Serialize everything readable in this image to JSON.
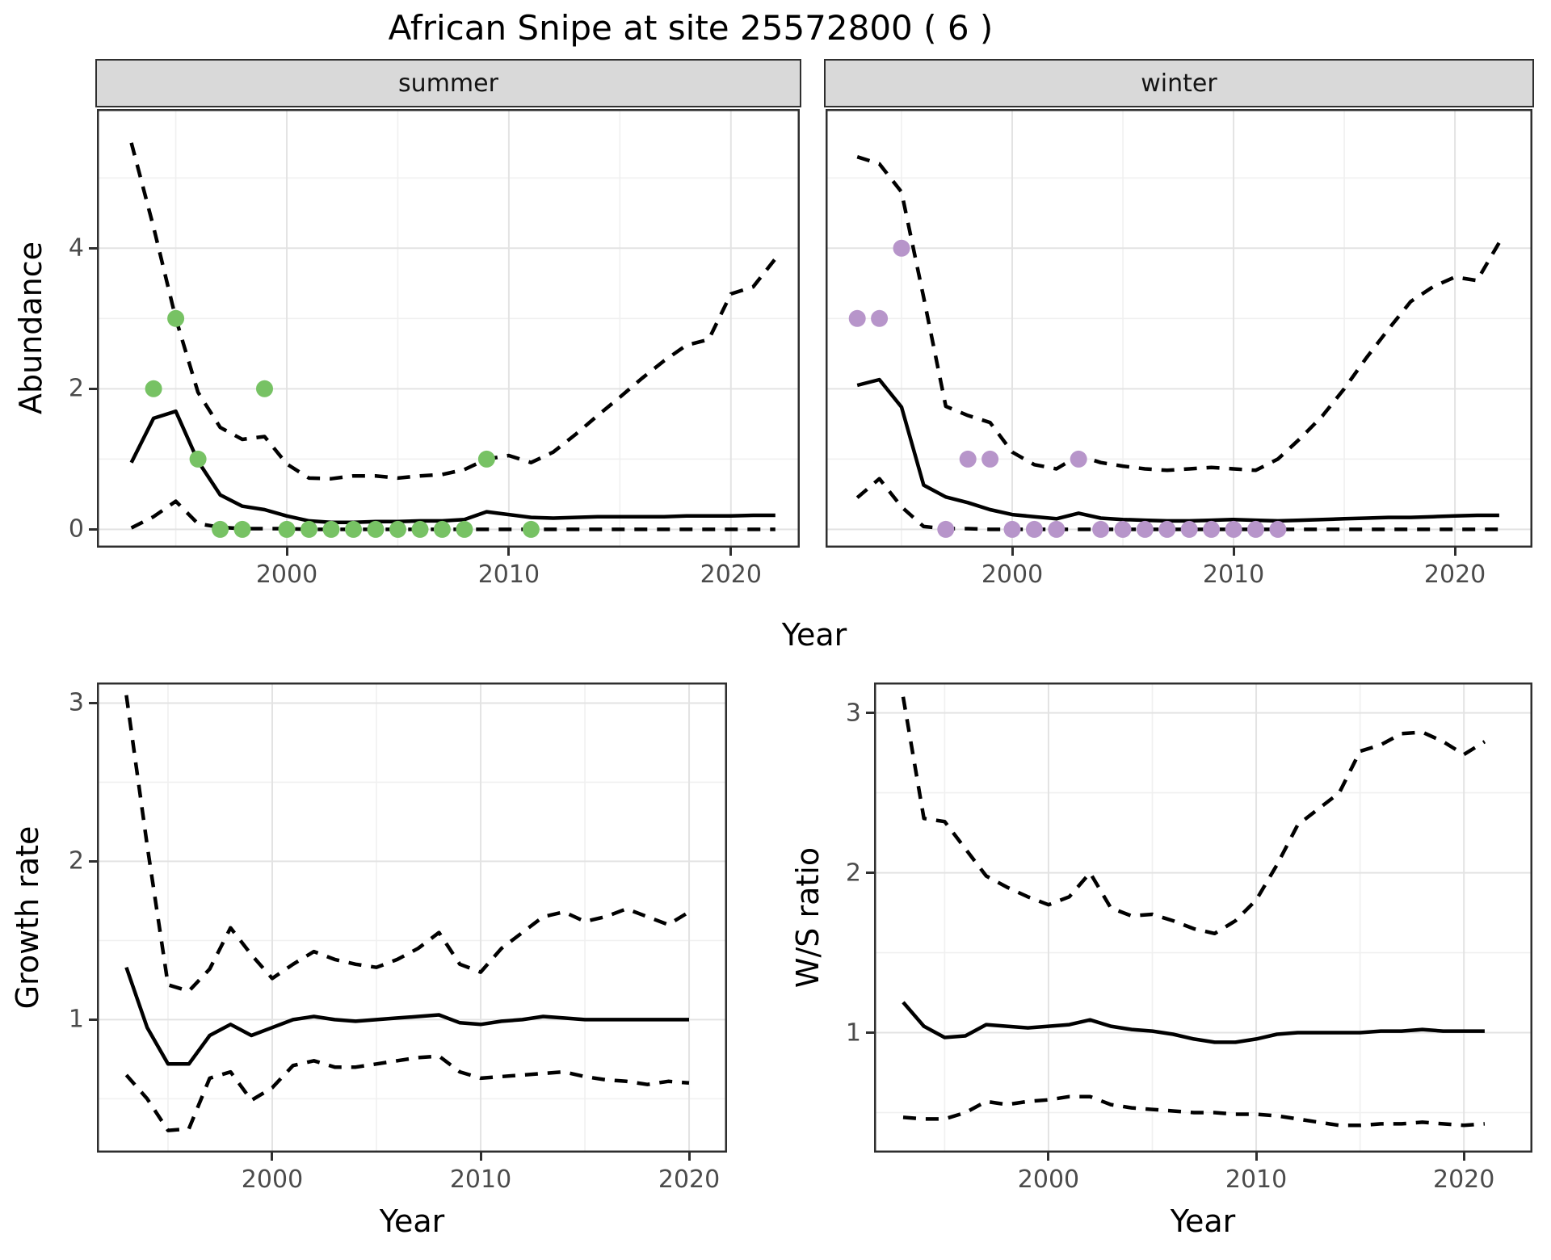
{
  "title": "African Snipe at site 25572800 ( 6 )",
  "chart_data": [
    {
      "id": "abundance-summer",
      "type": "line",
      "facet_label": "summer",
      "x_label": "Year",
      "y_label": "Abundance",
      "xlim": [
        1991.45,
        2023.1
      ],
      "ylim": [
        -0.26,
        5.98
      ],
      "grid": {
        "x_major": [
          2000,
          2010,
          2020
        ],
        "x_minor": [
          1995,
          2005,
          2015
        ],
        "y_major": [
          0,
          2,
          4
        ],
        "y_minor": [
          1,
          3,
          5
        ]
      },
      "x_ticks": [
        {
          "value": 2000,
          "label": "2000"
        },
        {
          "value": 2010,
          "label": "2010"
        },
        {
          "value": 2020,
          "label": "2020"
        }
      ],
      "y_ticks": [
        {
          "value": 0,
          "label": "0"
        },
        {
          "value": 2,
          "label": "2"
        },
        {
          "value": 4,
          "label": "4"
        }
      ],
      "series": [
        {
          "name": "upper-ci",
          "style": "dashed",
          "x": [
            1993,
            1994,
            1995,
            1996,
            1997,
            1998,
            1999,
            2000,
            2001,
            2002,
            2003,
            2004,
            2005,
            2006,
            2007,
            2008,
            2009,
            2010,
            2011,
            2012,
            2013,
            2014,
            2015,
            2016,
            2017,
            2018,
            2019,
            2020,
            2021,
            2022
          ],
          "y": [
            5.5,
            4.3,
            3.0,
            1.95,
            1.45,
            1.28,
            1.32,
            0.93,
            0.73,
            0.72,
            0.76,
            0.76,
            0.73,
            0.76,
            0.78,
            0.85,
            1.0,
            1.05,
            0.95,
            1.1,
            1.35,
            1.62,
            1.88,
            2.15,
            2.4,
            2.62,
            2.7,
            3.35,
            3.45,
            3.85
          ]
        },
        {
          "name": "median",
          "style": "solid",
          "x": [
            1993,
            1994,
            1995,
            1996,
            1997,
            1998,
            1999,
            2000,
            2001,
            2002,
            2003,
            2004,
            2005,
            2006,
            2007,
            2008,
            2009,
            2010,
            2011,
            2012,
            2013,
            2014,
            2015,
            2016,
            2017,
            2018,
            2019,
            2020,
            2021,
            2022
          ],
          "y": [
            0.95,
            1.58,
            1.68,
            0.97,
            0.49,
            0.33,
            0.28,
            0.19,
            0.12,
            0.1,
            0.1,
            0.11,
            0.11,
            0.12,
            0.12,
            0.14,
            0.25,
            0.21,
            0.17,
            0.16,
            0.17,
            0.18,
            0.18,
            0.18,
            0.18,
            0.19,
            0.19,
            0.19,
            0.2,
            0.2
          ]
        },
        {
          "name": "lower-ci",
          "style": "dashed",
          "x": [
            1993,
            1994,
            1995,
            1996,
            1997,
            1998,
            1999,
            2000,
            2001,
            2002,
            2003,
            2004,
            2005,
            2006,
            2007,
            2008,
            2009,
            2010,
            2011,
            2012,
            2013,
            2014,
            2015,
            2016,
            2017,
            2018,
            2019,
            2020,
            2021,
            2022
          ],
          "y": [
            0.02,
            0.18,
            0.4,
            0.08,
            0.03,
            0.01,
            0.01,
            0.01,
            0.0,
            0.0,
            0.0,
            0.0,
            0.0,
            0.0,
            0.0,
            0.0,
            0.0,
            0.0,
            0.0,
            0.0,
            0.0,
            0.0,
            0.0,
            0.0,
            0.0,
            0.0,
            0.0,
            0.0,
            0.0,
            0.0
          ]
        }
      ],
      "points": {
        "name": "observed-counts",
        "color": "#77c264",
        "x": [
          1994,
          1995,
          1996,
          1997,
          1998,
          1999,
          2000,
          2001,
          2002,
          2003,
          2004,
          2005,
          2006,
          2007,
          2008,
          2009,
          2011
        ],
        "y": [
          2,
          3,
          1,
          0,
          0,
          2,
          0,
          0,
          0,
          0,
          0,
          0,
          0,
          0,
          0,
          1,
          0
        ]
      }
    },
    {
      "id": "abundance-winter",
      "type": "line",
      "facet_label": "winter",
      "x_label": "Year",
      "y_label": "Abundance",
      "xlim": [
        1991.57,
        2023.5
      ],
      "ylim": [
        -0.26,
        5.98
      ],
      "grid": {
        "x_major": [
          2000,
          2010,
          2020
        ],
        "x_minor": [
          1995,
          2005,
          2015
        ],
        "y_major": [
          0,
          2,
          4
        ],
        "y_minor": [
          1,
          3,
          5
        ]
      },
      "x_ticks": [
        {
          "value": 2000,
          "label": "2000"
        },
        {
          "value": 2010,
          "label": "2010"
        },
        {
          "value": 2020,
          "label": "2020"
        }
      ],
      "y_ticks": [],
      "series": [
        {
          "name": "upper-ci",
          "style": "dashed",
          "x": [
            1993,
            1994,
            1995,
            1996,
            1997,
            1998,
            1999,
            2000,
            2001,
            2002,
            2003,
            2004,
            2005,
            2006,
            2007,
            2008,
            2009,
            2010,
            2011,
            2012,
            2013,
            2014,
            2015,
            2016,
            2017,
            2018,
            2019,
            2020,
            2021,
            2022
          ],
          "y": [
            5.3,
            5.2,
            4.8,
            3.3,
            1.75,
            1.62,
            1.52,
            1.1,
            0.92,
            0.86,
            1.05,
            0.95,
            0.9,
            0.86,
            0.84,
            0.86,
            0.88,
            0.86,
            0.84,
            1.0,
            1.29,
            1.61,
            2.0,
            2.44,
            2.85,
            3.24,
            3.45,
            3.59,
            3.54,
            4.08
          ]
        },
        {
          "name": "median",
          "style": "solid",
          "x": [
            1993,
            1994,
            1995,
            1996,
            1997,
            1998,
            1999,
            2000,
            2001,
            2002,
            2003,
            2004,
            2005,
            2006,
            2007,
            2008,
            2009,
            2010,
            2011,
            2012,
            2013,
            2014,
            2015,
            2016,
            2017,
            2018,
            2019,
            2020,
            2021,
            2022
          ],
          "y": [
            2.05,
            2.13,
            1.74,
            0.63,
            0.46,
            0.38,
            0.28,
            0.21,
            0.18,
            0.15,
            0.23,
            0.16,
            0.14,
            0.13,
            0.12,
            0.12,
            0.13,
            0.14,
            0.13,
            0.12,
            0.13,
            0.14,
            0.15,
            0.16,
            0.17,
            0.17,
            0.18,
            0.19,
            0.2,
            0.2
          ]
        },
        {
          "name": "lower-ci",
          "style": "dashed",
          "x": [
            1993,
            1994,
            1995,
            1996,
            1997,
            1998,
            1999,
            2000,
            2001,
            2002,
            2003,
            2004,
            2005,
            2006,
            2007,
            2008,
            2009,
            2010,
            2011,
            2012,
            2013,
            2014,
            2015,
            2016,
            2017,
            2018,
            2019,
            2020,
            2021,
            2022
          ],
          "y": [
            0.45,
            0.72,
            0.32,
            0.04,
            0.01,
            0.01,
            0.0,
            0.0,
            0.0,
            0.0,
            0.0,
            0.0,
            0.0,
            0.0,
            0.0,
            0.0,
            0.0,
            0.0,
            0.0,
            0.0,
            0.0,
            0.0,
            0.0,
            0.0,
            0.0,
            0.0,
            0.0,
            0.0,
            0.0,
            0.0
          ]
        }
      ],
      "points": {
        "name": "observed-counts",
        "color": "#b795ca",
        "x": [
          1993,
          1994,
          1995,
          1997,
          1998,
          1999,
          2000,
          2001,
          2002,
          2003,
          2004,
          2005,
          2006,
          2007,
          2008,
          2009,
          2010,
          2011,
          2012
        ],
        "y": [
          3,
          3,
          4,
          0,
          1,
          1,
          0,
          0,
          0,
          1,
          0,
          0,
          0,
          0,
          0,
          0,
          0,
          0,
          0
        ]
      }
    },
    {
      "id": "growth-rate",
      "type": "line",
      "facet_label": "",
      "x_label": "Year",
      "y_label": "Growth rate",
      "xlim": [
        1991.59,
        2021.82
      ],
      "ylim": [
        0.16,
        3.13
      ],
      "grid": {
        "x_major": [
          2000,
          2010,
          2020
        ],
        "x_minor": [
          1995,
          2005,
          2015
        ],
        "y_major": [
          1,
          2,
          3
        ],
        "y_minor": [
          0.5,
          1.5,
          2.5
        ]
      },
      "x_ticks": [
        {
          "value": 2000,
          "label": "2000"
        },
        {
          "value": 2010,
          "label": "2010"
        },
        {
          "value": 2020,
          "label": "2020"
        }
      ],
      "y_ticks": [
        {
          "value": 1,
          "label": "1"
        },
        {
          "value": 2,
          "label": "2"
        },
        {
          "value": 3,
          "label": "3"
        }
      ],
      "series": [
        {
          "name": "upper-ci",
          "style": "dashed",
          "x": [
            1993,
            1994,
            1995,
            1996,
            1997,
            1998,
            1999,
            2000,
            2001,
            2002,
            2003,
            2004,
            2005,
            2006,
            2007,
            2008,
            2009,
            2010,
            2011,
            2012,
            2013,
            2014,
            2015,
            2016,
            2017,
            2018,
            2019,
            2020
          ],
          "y": [
            3.05,
            2.1,
            1.22,
            1.18,
            1.32,
            1.58,
            1.41,
            1.26,
            1.35,
            1.43,
            1.38,
            1.35,
            1.33,
            1.38,
            1.45,
            1.55,
            1.35,
            1.3,
            1.45,
            1.55,
            1.65,
            1.68,
            1.62,
            1.65,
            1.7,
            1.65,
            1.6,
            1.68
          ]
        },
        {
          "name": "median",
          "style": "solid",
          "x": [
            1993,
            1994,
            1995,
            1996,
            1997,
            1998,
            1999,
            2000,
            2001,
            2002,
            2003,
            2004,
            2005,
            2006,
            2007,
            2008,
            2009,
            2010,
            2011,
            2012,
            2013,
            2014,
            2015,
            2016,
            2017,
            2018,
            2019,
            2020
          ],
          "y": [
            1.33,
            0.95,
            0.72,
            0.72,
            0.9,
            0.97,
            0.9,
            0.95,
            1.0,
            1.02,
            1.0,
            0.99,
            1.0,
            1.01,
            1.02,
            1.03,
            0.98,
            0.97,
            0.99,
            1.0,
            1.02,
            1.01,
            1.0,
            1.0,
            1.0,
            1.0,
            1.0,
            1.0
          ]
        },
        {
          "name": "lower-ci",
          "style": "dashed",
          "x": [
            1993,
            1994,
            1995,
            1996,
            1997,
            1998,
            1999,
            2000,
            2001,
            2002,
            2003,
            2004,
            2005,
            2006,
            2007,
            2008,
            2009,
            2010,
            2011,
            2012,
            2013,
            2014,
            2015,
            2016,
            2017,
            2018,
            2019,
            2020
          ],
          "y": [
            0.65,
            0.5,
            0.3,
            0.31,
            0.63,
            0.67,
            0.49,
            0.57,
            0.71,
            0.74,
            0.7,
            0.7,
            0.72,
            0.74,
            0.76,
            0.77,
            0.67,
            0.63,
            0.64,
            0.65,
            0.66,
            0.67,
            0.64,
            0.62,
            0.61,
            0.59,
            0.61,
            0.6
          ]
        }
      ],
      "points": null
    },
    {
      "id": "ws-ratio",
      "type": "line",
      "facet_label": "",
      "x_label": "Year",
      "y_label": "W/S ratio",
      "xlim": [
        1991.6,
        2023.3
      ],
      "ylim": [
        0.25,
        3.19
      ],
      "grid": {
        "x_major": [
          2000,
          2010,
          2020
        ],
        "x_minor": [
          1995,
          2005,
          2015
        ],
        "y_major": [
          1,
          2,
          3
        ],
        "y_minor": [
          0.5,
          1.5,
          2.5
        ]
      },
      "x_ticks": [
        {
          "value": 2000,
          "label": "2000"
        },
        {
          "value": 2010,
          "label": "2010"
        },
        {
          "value": 2020,
          "label": "2020"
        }
      ],
      "y_ticks": [
        {
          "value": 1,
          "label": "1"
        },
        {
          "value": 2,
          "label": "2"
        },
        {
          "value": 3,
          "label": "3"
        }
      ],
      "series": [
        {
          "name": "upper-ci",
          "style": "dashed",
          "x": [
            1993,
            1994,
            1995,
            1996,
            1997,
            1998,
            1999,
            2000,
            2001,
            2002,
            2003,
            2004,
            2005,
            2006,
            2007,
            2008,
            2009,
            2010,
            2011,
            2012,
            2013,
            2014,
            2015,
            2016,
            2017,
            2018,
            2019,
            2020,
            2021
          ],
          "y": [
            3.1,
            2.34,
            2.32,
            2.15,
            1.98,
            1.91,
            1.85,
            1.8,
            1.85,
            2.0,
            1.78,
            1.73,
            1.74,
            1.7,
            1.65,
            1.62,
            1.7,
            1.83,
            2.05,
            2.3,
            2.4,
            2.5,
            2.76,
            2.8,
            2.87,
            2.88,
            2.82,
            2.74,
            2.82
          ]
        },
        {
          "name": "median",
          "style": "solid",
          "x": [
            1993,
            1994,
            1995,
            1996,
            1997,
            1998,
            1999,
            2000,
            2001,
            2002,
            2003,
            2004,
            2005,
            2006,
            2007,
            2008,
            2009,
            2010,
            2011,
            2012,
            2013,
            2014,
            2015,
            2016,
            2017,
            2018,
            2019,
            2020,
            2021
          ],
          "y": [
            1.19,
            1.04,
            0.97,
            0.98,
            1.05,
            1.04,
            1.03,
            1.04,
            1.05,
            1.08,
            1.04,
            1.02,
            1.01,
            0.99,
            0.96,
            0.94,
            0.94,
            0.96,
            0.99,
            1.0,
            1.0,
            1.0,
            1.0,
            1.01,
            1.01,
            1.02,
            1.01,
            1.01,
            1.01
          ]
        },
        {
          "name": "lower-ci",
          "style": "dashed",
          "x": [
            1993,
            1994,
            1995,
            1996,
            1997,
            1998,
            1999,
            2000,
            2001,
            2002,
            2003,
            2004,
            2005,
            2006,
            2007,
            2008,
            2009,
            2010,
            2011,
            2012,
            2013,
            2014,
            2015,
            2016,
            2017,
            2018,
            2019,
            2020,
            2021
          ],
          "y": [
            0.47,
            0.46,
            0.46,
            0.5,
            0.57,
            0.55,
            0.57,
            0.58,
            0.6,
            0.6,
            0.55,
            0.53,
            0.52,
            0.51,
            0.5,
            0.5,
            0.49,
            0.49,
            0.48,
            0.46,
            0.44,
            0.42,
            0.42,
            0.43,
            0.43,
            0.44,
            0.43,
            0.42,
            0.43
          ]
        }
      ],
      "points": null
    }
  ]
}
